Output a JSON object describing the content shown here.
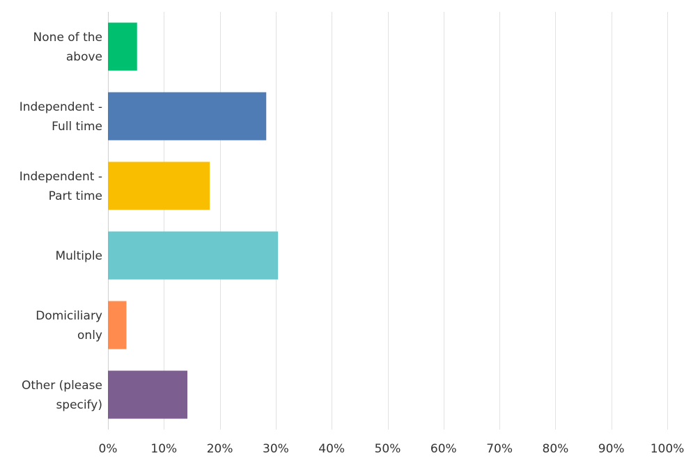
{
  "chart_data": {
    "type": "bar",
    "orientation": "horizontal",
    "categories": [
      [
        "None of the",
        "above"
      ],
      [
        "Independent -",
        "Full time"
      ],
      [
        "Independent -",
        "Part time"
      ],
      [
        "Multiple"
      ],
      [
        "Domiciliary",
        "only"
      ],
      [
        "Other (please",
        "specify)"
      ]
    ],
    "values": [
      5.2,
      28.3,
      18.2,
      30.4,
      3.3,
      14.2
    ],
    "colors": [
      "#00bf6f",
      "#507cb6",
      "#f9be00",
      "#6bc8cd",
      "#ff8b4f",
      "#7d5e90"
    ],
    "xlim": [
      0,
      100
    ],
    "xticks": [
      0,
      10,
      20,
      30,
      40,
      50,
      60,
      70,
      80,
      90,
      100
    ],
    "tick_suffix": "%",
    "grid": true,
    "legend": "none"
  }
}
